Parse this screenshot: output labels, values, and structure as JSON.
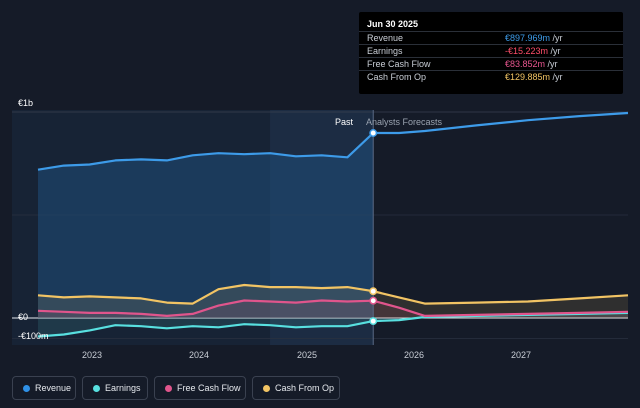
{
  "tooltip": {
    "date": "Jun 30 2025",
    "rows": [
      {
        "label": "Revenue",
        "value": "€897.969m",
        "unit": " /yr",
        "color": "#3d9be9"
      },
      {
        "label": "Earnings",
        "value": "-€15.223m",
        "unit": " /yr",
        "color": "#ff4e6a"
      },
      {
        "label": "Free Cash Flow",
        "value": "€83.852m",
        "unit": " /yr",
        "color": "#e8568f"
      },
      {
        "label": "Cash From Op",
        "value": "€129.885m",
        "unit": " /yr",
        "color": "#f2c464"
      }
    ]
  },
  "sections": {
    "past": "Past",
    "forecast": "Analysts Forecasts"
  },
  "legend": [
    {
      "label": "Revenue",
      "color": "#2f91e7"
    },
    {
      "label": "Earnings",
      "color": "#58e0e0"
    },
    {
      "label": "Free Cash Flow",
      "color": "#e0558c"
    },
    {
      "label": "Cash From Op",
      "color": "#f2c464"
    }
  ],
  "chart_data": {
    "type": "line",
    "y_ticks": [
      "€1b",
      "€0",
      "-€100m"
    ],
    "x_ticks": [
      "2023",
      "2024",
      "2025",
      "2026",
      "2027"
    ],
    "ylim": [
      -100,
      1000
    ],
    "xlim": [
      2022.25,
      2027.97
    ],
    "divider_x": 2025.5,
    "series": [
      {
        "name": "Revenue",
        "color": "#3d9be9",
        "x": [
          2022.25,
          2022.5,
          2022.75,
          2023.0,
          2023.25,
          2023.5,
          2023.75,
          2024.0,
          2024.25,
          2024.5,
          2024.75,
          2025.0,
          2025.25,
          2025.5,
          2025.75,
          2026.0,
          2026.5,
          2027.0,
          2027.5,
          2027.97
        ],
        "y": [
          720,
          740,
          745,
          765,
          770,
          765,
          790,
          800,
          795,
          800,
          785,
          790,
          780,
          898,
          898,
          908,
          935,
          960,
          980,
          995
        ]
      },
      {
        "name": "Earnings",
        "color": "#58e0e0",
        "x": [
          2022.25,
          2022.5,
          2022.75,
          2023.0,
          2023.25,
          2023.5,
          2023.75,
          2024.0,
          2024.25,
          2024.5,
          2024.75,
          2025.0,
          2025.25,
          2025.5,
          2025.75,
          2026.0,
          2026.5,
          2027.0,
          2027.5,
          2027.97
        ],
        "y": [
          -90,
          -80,
          -60,
          -35,
          -40,
          -50,
          -40,
          -45,
          -30,
          -35,
          -45,
          -40,
          -40,
          -15,
          -10,
          5,
          10,
          15,
          20,
          25
        ]
      },
      {
        "name": "Free Cash Flow",
        "color": "#e0558c",
        "x": [
          2022.25,
          2022.5,
          2022.75,
          2023.0,
          2023.25,
          2023.5,
          2023.75,
          2024.0,
          2024.25,
          2024.5,
          2024.75,
          2025.0,
          2025.25,
          2025.5,
          2025.75,
          2026.0,
          2026.5,
          2027.0,
          2027.5,
          2027.97
        ],
        "y": [
          35,
          30,
          25,
          25,
          20,
          10,
          20,
          60,
          85,
          80,
          75,
          85,
          80,
          84,
          50,
          10,
          15,
          20,
          25,
          30
        ]
      },
      {
        "name": "Cash From Op",
        "color": "#f2c464",
        "x": [
          2022.25,
          2022.5,
          2022.75,
          2023.0,
          2023.25,
          2023.5,
          2023.75,
          2024.0,
          2024.25,
          2024.5,
          2024.75,
          2025.0,
          2025.25,
          2025.5,
          2025.75,
          2026.0,
          2026.5,
          2027.0,
          2027.5,
          2027.97
        ],
        "y": [
          110,
          100,
          105,
          100,
          95,
          75,
          70,
          140,
          160,
          150,
          150,
          145,
          150,
          130,
          100,
          70,
          75,
          80,
          95,
          110
        ]
      }
    ]
  }
}
